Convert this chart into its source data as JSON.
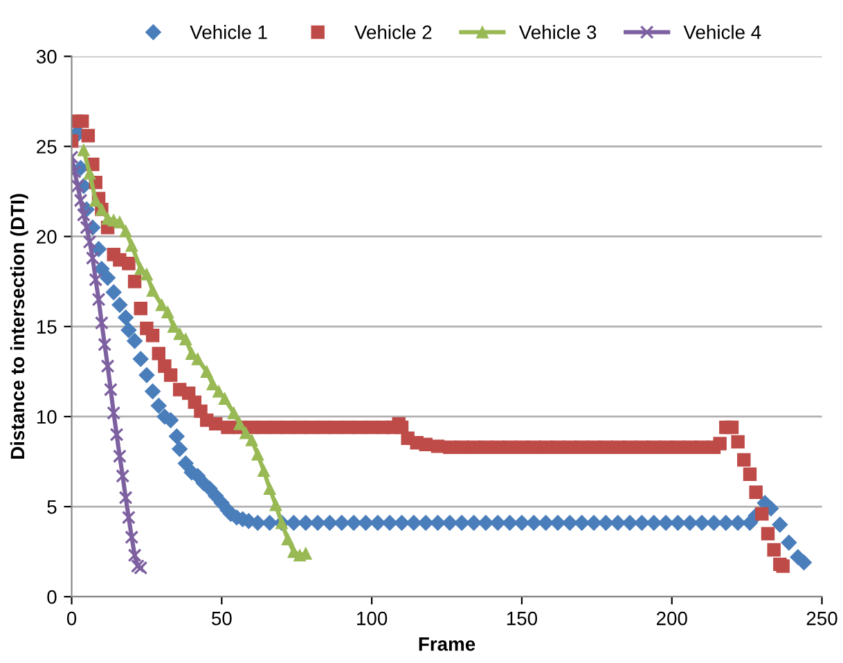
{
  "chart_data": {
    "type": "line",
    "xlabel": "Frame",
    "ylabel": "Distance to intersection (DTI)",
    "xlim": [
      0,
      250
    ],
    "xticks": [
      0,
      50,
      100,
      150,
      200,
      250
    ],
    "ylim": [
      0,
      30
    ],
    "yticks": [
      0,
      5,
      10,
      15,
      20,
      25,
      30
    ],
    "grid": "y",
    "legend": "top",
    "series": [
      {
        "name": "Vehicle 1",
        "type": "scatter",
        "marker": "diamond",
        "color": "#4a7ebb",
        "x": [
          1,
          2,
          3,
          4,
          5,
          7,
          9,
          10,
          12,
          14,
          16,
          18,
          19,
          21,
          23,
          25,
          27,
          29,
          31,
          33,
          35,
          36,
          38,
          40,
          42,
          44,
          46,
          48,
          50,
          52,
          53,
          55,
          57,
          59,
          62,
          66,
          70,
          74,
          78,
          82,
          86,
          90,
          94,
          98,
          102,
          106,
          110,
          114,
          118,
          122,
          126,
          130,
          134,
          138,
          142,
          146,
          150,
          154,
          158,
          162,
          166,
          170,
          174,
          178,
          182,
          186,
          190,
          194,
          198,
          202,
          206,
          210,
          214,
          218,
          222,
          226,
          228,
          231,
          233,
          236,
          239,
          242,
          244
        ],
        "values": [
          25.5,
          25.8,
          23.8,
          22.8,
          21.5,
          20.5,
          19.3,
          18.2,
          17.7,
          16.9,
          16.2,
          15.5,
          14.8,
          14.2,
          13.2,
          12.3,
          11.4,
          10.6,
          10.0,
          9.8,
          8.9,
          8.2,
          7.4,
          6.9,
          6.7,
          6.3,
          6.0,
          5.6,
          5.2,
          4.8,
          4.6,
          4.4,
          4.3,
          4.2,
          4.1,
          4.1,
          4.1,
          4.1,
          4.1,
          4.1,
          4.1,
          4.1,
          4.1,
          4.1,
          4.1,
          4.1,
          4.1,
          4.1,
          4.1,
          4.1,
          4.1,
          4.1,
          4.1,
          4.1,
          4.1,
          4.1,
          4.1,
          4.1,
          4.1,
          4.1,
          4.1,
          4.1,
          4.1,
          4.1,
          4.1,
          4.1,
          4.1,
          4.1,
          4.1,
          4.1,
          4.1,
          4.1,
          4.1,
          4.1,
          4.1,
          4.1,
          4.5,
          5.2,
          4.9,
          4.0,
          3.0,
          2.2,
          1.9
        ]
      },
      {
        "name": "Vehicle 2",
        "type": "scatter",
        "marker": "square",
        "color": "#be4b48",
        "x": [
          0,
          1.5,
          3.5,
          5.5,
          7,
          8,
          9,
          10,
          12,
          14,
          16,
          19,
          21,
          23,
          25,
          27,
          29,
          31,
          33,
          36,
          39,
          41,
          43,
          45,
          48,
          52,
          56,
          60,
          64,
          68,
          72,
          76,
          80,
          84,
          88,
          92,
          96,
          100,
          104,
          107,
          109,
          110,
          112,
          115,
          118,
          122,
          126,
          130,
          134,
          138,
          142,
          146,
          150,
          154,
          158,
          162,
          166,
          170,
          174,
          178,
          182,
          186,
          190,
          194,
          198,
          202,
          206,
          210,
          214,
          216,
          218,
          220,
          222,
          224,
          226,
          228,
          230,
          232,
          234,
          236,
          237
        ],
        "values": [
          25.3,
          26.4,
          26.4,
          25.6,
          24.0,
          23.0,
          22.1,
          21.5,
          20.5,
          19.0,
          18.7,
          18.5,
          17.5,
          16.0,
          14.9,
          14.5,
          13.5,
          12.8,
          12.3,
          11.5,
          11.3,
          10.8,
          10.3,
          9.8,
          9.6,
          9.4,
          9.4,
          9.4,
          9.4,
          9.4,
          9.4,
          9.4,
          9.4,
          9.4,
          9.4,
          9.4,
          9.4,
          9.4,
          9.4,
          9.4,
          9.6,
          9.4,
          8.8,
          8.55,
          8.45,
          8.35,
          8.3,
          8.3,
          8.3,
          8.3,
          8.3,
          8.3,
          8.3,
          8.3,
          8.3,
          8.3,
          8.3,
          8.3,
          8.3,
          8.3,
          8.3,
          8.3,
          8.3,
          8.3,
          8.3,
          8.3,
          8.3,
          8.3,
          8.3,
          8.5,
          9.4,
          9.4,
          8.6,
          7.6,
          6.8,
          5.8,
          4.6,
          3.5,
          2.6,
          1.8,
          1.7
        ]
      },
      {
        "name": "Vehicle 3",
        "marker": "triangle",
        "color": "#98b954",
        "x": [
          4,
          6,
          8,
          10,
          12,
          14,
          16,
          18,
          20,
          23,
          25,
          27,
          30,
          32,
          34,
          36,
          38,
          40,
          42,
          45,
          47,
          49,
          51,
          54,
          56,
          58,
          60,
          62,
          64,
          66,
          68,
          70,
          72,
          74,
          76,
          78
        ],
        "values": [
          24.8,
          23.5,
          22.0,
          21.5,
          21.0,
          20.9,
          20.8,
          20.3,
          19.5,
          18.2,
          17.9,
          17.0,
          16.2,
          15.8,
          15.0,
          14.6,
          14.3,
          13.5,
          13.2,
          12.5,
          11.8,
          11.4,
          11.0,
          10.2,
          9.6,
          9.1,
          8.7,
          7.9,
          7.0,
          6.0,
          5.1,
          4.1,
          3.2,
          2.5,
          2.3,
          2.4
        ]
      },
      {
        "name": "Vehicle 4",
        "marker": "cross",
        "color": "#7d60a0",
        "x": [
          0,
          1,
          2,
          3,
          4,
          5,
          6,
          7,
          8,
          9,
          10,
          11,
          12,
          13,
          14,
          15,
          16,
          17,
          18,
          19,
          20,
          21,
          22,
          23
        ],
        "values": [
          24.4,
          23.6,
          22.8,
          22.0,
          21.2,
          20.5,
          19.7,
          18.8,
          17.6,
          16.5,
          15.2,
          14.0,
          12.8,
          11.5,
          10.2,
          9.0,
          7.8,
          6.7,
          5.5,
          4.4,
          3.3,
          2.3,
          1.7,
          1.6
        ]
      }
    ]
  }
}
